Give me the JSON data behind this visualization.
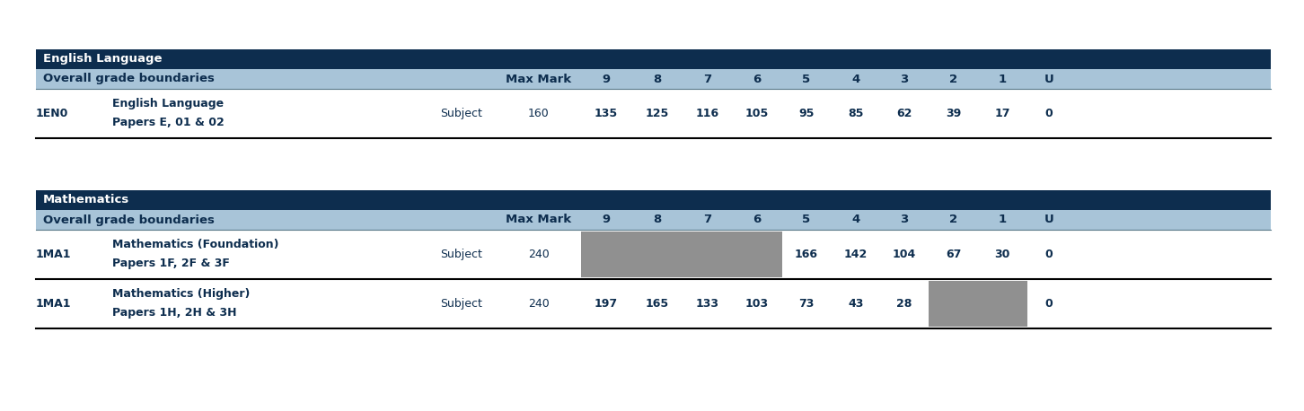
{
  "sections": [
    {
      "section_title": "English Language",
      "header_bg": "#0d2d4e",
      "subheader_bg": "#a8c4d8",
      "subheader_text": "Overall grade boundaries",
      "rows": [
        {
          "code": "1EN0",
          "name": "English Language",
          "subname": "Papers E, 01 & 02",
          "type": "Subject",
          "max_mark": "160",
          "values": [
            "135",
            "125",
            "116",
            "105",
            "95",
            "85",
            "62",
            "39",
            "17",
            "0"
          ],
          "grey_cells": []
        }
      ]
    },
    {
      "section_title": "Mathematics",
      "header_bg": "#0d2d4e",
      "subheader_bg": "#a8c4d8",
      "subheader_text": "Overall grade boundaries",
      "rows": [
        {
          "code": "1MA1",
          "name": "Mathematics (Foundation)",
          "subname": "Papers 1F, 2F & 3F",
          "type": "Subject",
          "max_mark": "240",
          "values": [
            "",
            "",
            "",
            "",
            "166",
            "142",
            "104",
            "67",
            "30",
            "0"
          ],
          "grey_cells": [
            0,
            1,
            2,
            3
          ]
        },
        {
          "code": "1MA1",
          "name": "Mathematics (Higher)",
          "subname": "Papers 1H, 2H & 3H",
          "type": "Subject",
          "max_mark": "240",
          "values": [
            "197",
            "165",
            "133",
            "103",
            "73",
            "43",
            "28",
            "",
            "",
            "0"
          ],
          "grey_cells": [
            7,
            8
          ]
        }
      ]
    }
  ],
  "bg_color": "#ffffff",
  "header_text_color": "#ffffff",
  "body_text_color": "#0d2d4e",
  "grey_cell_color": "#909090",
  "divider_color": "#000000",
  "grade_cols": [
    "9",
    "8",
    "7",
    "6",
    "5",
    "4",
    "3",
    "2",
    "1",
    "U"
  ],
  "fig_width": 14.52,
  "fig_height": 4.58,
  "dpi": 100
}
